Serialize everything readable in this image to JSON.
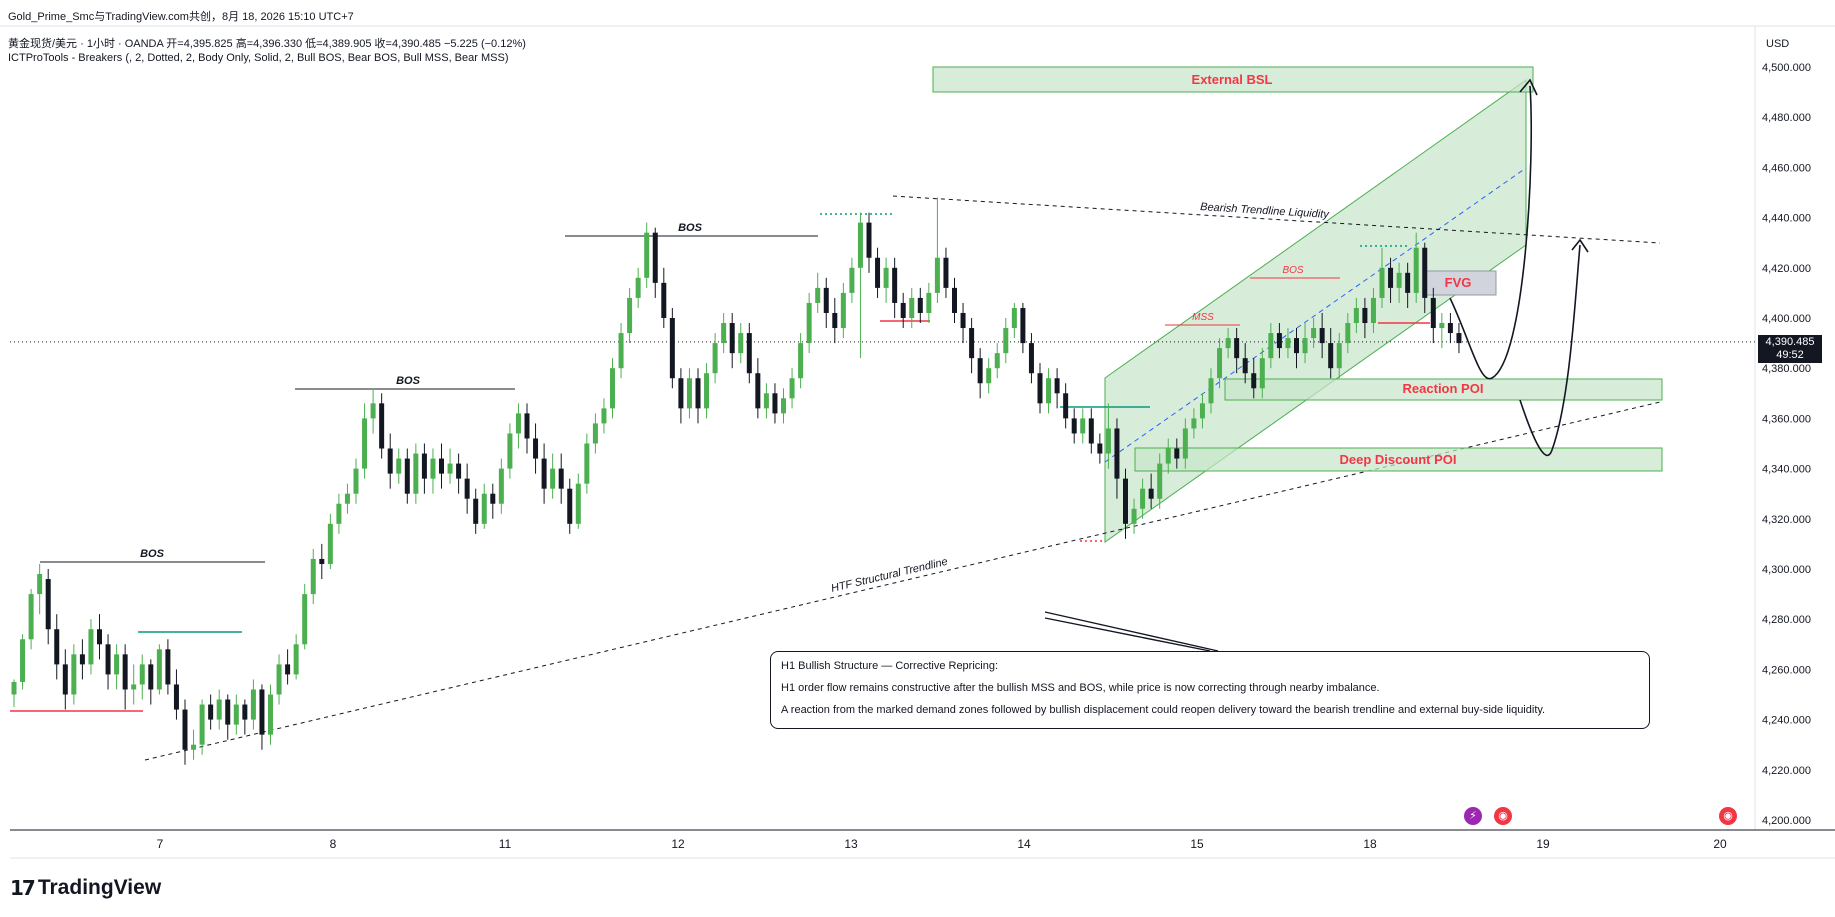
{
  "header": {
    "title": "Gold_Prime_Smc与TradingView.com共创，8月 18, 2026 15:10 UTC+7",
    "ohlc": "黄金现货/美元 · 1小时 · OANDA  开=4,395.825  高=4,396.330  低=4,389.905  收=4,390.485  −5.225 (−0.12%)",
    "indicator": "ICTProTools - Breakers (, 2, Dotted, 2, Body Only, Solid, 2, Bull BOS, Bear BOS, Bull MSS, Bear MSS)"
  },
  "price_axis": {
    "currency": "USD",
    "current_price": "4,390.485",
    "countdown": "49:52"
  },
  "chart_data": {
    "type": "candlestick",
    "ylim": [
      4200,
      4500
    ],
    "y_ticks": [
      "4,200.000",
      "4,220.000",
      "4,240.000",
      "4,260.000",
      "4,280.000",
      "4,300.000",
      "4,320.000",
      "4,340.000",
      "4,360.000",
      "4,380.000",
      "4,400.000",
      "4,420.000",
      "4,440.000",
      "4,460.000",
      "4,480.000",
      "4,500.000"
    ],
    "x_ticks": [
      "7",
      "8",
      "11",
      "12",
      "13",
      "14",
      "15",
      "18",
      "19",
      "20"
    ],
    "current_price": 4390.485,
    "candles": [
      [
        4250,
        4255,
        4245,
        4256
      ],
      [
        4255,
        4272,
        4252,
        4274
      ],
      [
        4272,
        4290,
        4268,
        4292
      ],
      [
        4290,
        4298,
        4282,
        4302
      ],
      [
        4296,
        4276,
        4270,
        4300
      ],
      [
        4276,
        4262,
        4256,
        4282
      ],
      [
        4262,
        4250,
        4244,
        4268
      ],
      [
        4250,
        4266,
        4246,
        4270
      ],
      [
        4266,
        4262,
        4256,
        4272
      ],
      [
        4262,
        4276,
        4258,
        4280
      ],
      [
        4276,
        4270,
        4264,
        4282
      ],
      [
        4270,
        4258,
        4252,
        4274
      ],
      [
        4258,
        4266,
        4252,
        4270
      ],
      [
        4266,
        4252,
        4244,
        4270
      ],
      [
        4252,
        4254,
        4246,
        4262
      ],
      [
        4254,
        4262,
        4248,
        4266
      ],
      [
        4262,
        4252,
        4246,
        4264
      ],
      [
        4252,
        4268,
        4250,
        4270
      ],
      [
        4268,
        4254,
        4250,
        4272
      ],
      [
        4254,
        4244,
        4240,
        4260
      ],
      [
        4244,
        4228,
        4222,
        4248
      ],
      [
        4228,
        4230,
        4224,
        4236
      ],
      [
        4230,
        4246,
        4226,
        4248
      ],
      [
        4246,
        4240,
        4236,
        4250
      ],
      [
        4240,
        4248,
        4236,
        4252
      ],
      [
        4248,
        4238,
        4232,
        4250
      ],
      [
        4238,
        4246,
        4234,
        4250
      ],
      [
        4246,
        4240,
        4234,
        4248
      ],
      [
        4240,
        4252,
        4236,
        4256
      ],
      [
        4252,
        4234,
        4228,
        4254
      ],
      [
        4234,
        4250,
        4230,
        4254
      ],
      [
        4250,
        4262,
        4246,
        4266
      ],
      [
        4262,
        4258,
        4254,
        4268
      ],
      [
        4258,
        4270,
        4256,
        4274
      ],
      [
        4270,
        4290,
        4268,
        4294
      ],
      [
        4290,
        4304,
        4286,
        4308
      ],
      [
        4304,
        4302,
        4296,
        4310
      ],
      [
        4302,
        4318,
        4300,
        4322
      ],
      [
        4318,
        4326,
        4314,
        4330
      ],
      [
        4326,
        4330,
        4322,
        4334
      ],
      [
        4330,
        4340,
        4326,
        4344
      ],
      [
        4340,
        4360,
        4336,
        4366
      ],
      [
        4360,
        4366,
        4354,
        4372
      ],
      [
        4366,
        4348,
        4344,
        4370
      ],
      [
        4348,
        4338,
        4332,
        4354
      ],
      [
        4338,
        4344,
        4334,
        4348
      ],
      [
        4344,
        4330,
        4326,
        4348
      ],
      [
        4330,
        4346,
        4326,
        4350
      ],
      [
        4346,
        4336,
        4330,
        4350
      ],
      [
        4336,
        4344,
        4330,
        4348
      ],
      [
        4344,
        4338,
        4332,
        4350
      ],
      [
        4338,
        4342,
        4334,
        4348
      ],
      [
        4342,
        4336,
        4330,
        4346
      ],
      [
        4336,
        4328,
        4322,
        4342
      ],
      [
        4328,
        4318,
        4314,
        4332
      ],
      [
        4318,
        4330,
        4316,
        4334
      ],
      [
        4330,
        4326,
        4320,
        4334
      ],
      [
        4326,
        4340,
        4322,
        4344
      ],
      [
        4340,
        4354,
        4336,
        4358
      ],
      [
        4354,
        4362,
        4348,
        4366
      ],
      [
        4362,
        4352,
        4346,
        4366
      ],
      [
        4352,
        4344,
        4338,
        4358
      ],
      [
        4344,
        4332,
        4326,
        4350
      ],
      [
        4332,
        4340,
        4328,
        4346
      ],
      [
        4340,
        4332,
        4326,
        4346
      ],
      [
        4332,
        4318,
        4314,
        4336
      ],
      [
        4318,
        4334,
        4316,
        4338
      ],
      [
        4334,
        4350,
        4330,
        4354
      ],
      [
        4350,
        4358,
        4346,
        4362
      ],
      [
        4358,
        4364,
        4354,
        4368
      ],
      [
        4364,
        4380,
        4360,
        4384
      ],
      [
        4380,
        4394,
        4376,
        4398
      ],
      [
        4394,
        4408,
        4390,
        4412
      ],
      [
        4408,
        4416,
        4404,
        4420
      ],
      [
        4416,
        4434,
        4412,
        4438
      ],
      [
        4434,
        4414,
        4408,
        4436
      ],
      [
        4414,
        4400,
        4396,
        4420
      ],
      [
        4400,
        4376,
        4372,
        4404
      ],
      [
        4376,
        4364,
        4358,
        4380
      ],
      [
        4364,
        4376,
        4360,
        4380
      ],
      [
        4376,
        4364,
        4358,
        4380
      ],
      [
        4364,
        4378,
        4360,
        4382
      ],
      [
        4378,
        4390,
        4374,
        4394
      ],
      [
        4390,
        4398,
        4386,
        4402
      ],
      [
        4398,
        4386,
        4380,
        4402
      ],
      [
        4386,
        4394,
        4382,
        4398
      ],
      [
        4394,
        4378,
        4374,
        4398
      ],
      [
        4378,
        4364,
        4360,
        4384
      ],
      [
        4364,
        4370,
        4360,
        4374
      ],
      [
        4370,
        4362,
        4358,
        4374
      ],
      [
        4362,
        4368,
        4358,
        4372
      ],
      [
        4368,
        4376,
        4364,
        4380
      ],
      [
        4376,
        4390,
        4372,
        4394
      ],
      [
        4390,
        4406,
        4386,
        4410
      ],
      [
        4406,
        4412,
        4402,
        4418
      ],
      [
        4412,
        4402,
        4396,
        4416
      ],
      [
        4402,
        4396,
        4390,
        4408
      ],
      [
        4396,
        4410,
        4392,
        4414
      ],
      [
        4410,
        4420,
        4406,
        4424
      ],
      [
        4420,
        4438,
        4384,
        4442
      ],
      [
        4438,
        4424,
        4418,
        4442
      ],
      [
        4424,
        4412,
        4408,
        4428
      ],
      [
        4412,
        4420,
        4406,
        4424
      ],
      [
        4420,
        4406,
        4400,
        4424
      ],
      [
        4406,
        4400,
        4396,
        4410
      ],
      [
        4400,
        4408,
        4396,
        4412
      ],
      [
        4408,
        4402,
        4398,
        4412
      ],
      [
        4402,
        4410,
        4398,
        4414
      ],
      [
        4410,
        4424,
        4406,
        4448
      ],
      [
        4424,
        4412,
        4408,
        4428
      ],
      [
        4412,
        4402,
        4398,
        4416
      ],
      [
        4402,
        4396,
        4390,
        4406
      ],
      [
        4396,
        4384,
        4378,
        4400
      ],
      [
        4384,
        4374,
        4368,
        4388
      ],
      [
        4374,
        4380,
        4370,
        4384
      ],
      [
        4380,
        4386,
        4376,
        4390
      ],
      [
        4386,
        4396,
        4382,
        4400
      ],
      [
        4396,
        4404,
        4392,
        4406
      ],
      [
        4404,
        4390,
        4386,
        4406
      ],
      [
        4390,
        4378,
        4374,
        4394
      ],
      [
        4378,
        4366,
        4362,
        4382
      ],
      [
        4366,
        4376,
        4362,
        4380
      ],
      [
        4376,
        4370,
        4364,
        4380
      ],
      [
        4370,
        4360,
        4356,
        4374
      ],
      [
        4360,
        4354,
        4350,
        4364
      ],
      [
        4354,
        4360,
        4350,
        4364
      ],
      [
        4360,
        4350,
        4346,
        4364
      ],
      [
        4350,
        4346,
        4342,
        4354
      ],
      [
        4346,
        4356,
        4340,
        4366
      ],
      [
        4356,
        4336,
        4328,
        4360
      ],
      [
        4336,
        4318,
        4312,
        4340
      ],
      [
        4318,
        4324,
        4314,
        4328
      ],
      [
        4324,
        4332,
        4320,
        4336
      ],
      [
        4332,
        4328,
        4324,
        4338
      ],
      [
        4328,
        4342,
        4324,
        4346
      ],
      [
        4342,
        4348,
        4338,
        4352
      ],
      [
        4348,
        4344,
        4340,
        4352
      ],
      [
        4344,
        4356,
        4340,
        4360
      ],
      [
        4356,
        4360,
        4352,
        4364
      ],
      [
        4360,
        4366,
        4356,
        4370
      ],
      [
        4366,
        4376,
        4362,
        4380
      ],
      [
        4376,
        4388,
        4372,
        4392
      ],
      [
        4388,
        4392,
        4384,
        4396
      ],
      [
        4392,
        4384,
        4378,
        4396
      ],
      [
        4384,
        4378,
        4374,
        4390
      ],
      [
        4378,
        4372,
        4368,
        4384
      ],
      [
        4372,
        4384,
        4368,
        4388
      ],
      [
        4384,
        4394,
        4380,
        4398
      ],
      [
        4394,
        4388,
        4384,
        4398
      ],
      [
        4388,
        4392,
        4384,
        4396
      ],
      [
        4392,
        4386,
        4380,
        4396
      ],
      [
        4386,
        4392,
        4382,
        4398
      ],
      [
        4392,
        4396,
        4388,
        4400
      ],
      [
        4396,
        4390,
        4384,
        4402
      ],
      [
        4390,
        4380,
        4376,
        4396
      ],
      [
        4380,
        4390,
        4376,
        4394
      ],
      [
        4390,
        4398,
        4386,
        4402
      ],
      [
        4398,
        4404,
        4394,
        4408
      ],
      [
        4404,
        4398,
        4392,
        4408
      ],
      [
        4398,
        4408,
        4394,
        4412
      ],
      [
        4408,
        4420,
        4404,
        4428
      ],
      [
        4420,
        4412,
        4406,
        4424
      ],
      [
        4412,
        4418,
        4406,
        4422
      ],
      [
        4418,
        4410,
        4404,
        4422
      ],
      [
        4410,
        4428,
        4406,
        4434
      ],
      [
        4428,
        4408,
        4402,
        4430
      ],
      [
        4408,
        4396,
        4390,
        4412
      ],
      [
        4396,
        4398,
        4388,
        4402
      ],
      [
        4398,
        4394,
        4390,
        4402
      ],
      [
        4394,
        4390,
        4386,
        4398
      ]
    ]
  },
  "annotations": {
    "bos_labels": [
      "BOS",
      "BOS",
      "BOS",
      "BOS"
    ],
    "mss_label": "MSS",
    "fvg_label": "FVG",
    "external_bsl": "External BSL",
    "reaction_poi": "Reaction POI",
    "deep_discount_poi": "Deep Discount POI",
    "bearish_trendline": "Bearish Trendline Liquidity",
    "htf_trendline": "HTF Structural Trendline"
  },
  "note": {
    "title": "H1 Bullish Structure — Corrective Repricing:",
    "line1": "H1 order flow remains constructive after the bullish MSS and BOS, while price is now correcting through nearby imbalance.",
    "line2": "A reaction from the marked demand zones followed by bullish displacement could reopen delivery toward the bearish trendline and external buy-side liquidity."
  },
  "colors": {
    "bull": "#4caf50",
    "bear": "#131722",
    "zone_fill": "#c8e6c9",
    "zone_stroke": "#4caf50",
    "zone_text": "#f23645",
    "bear_line": "#f23645",
    "bull_line": "#089981",
    "trend_dashed": "#131722",
    "channel_mid": "#2962ff"
  },
  "footer": {
    "brand": "TradingView"
  }
}
